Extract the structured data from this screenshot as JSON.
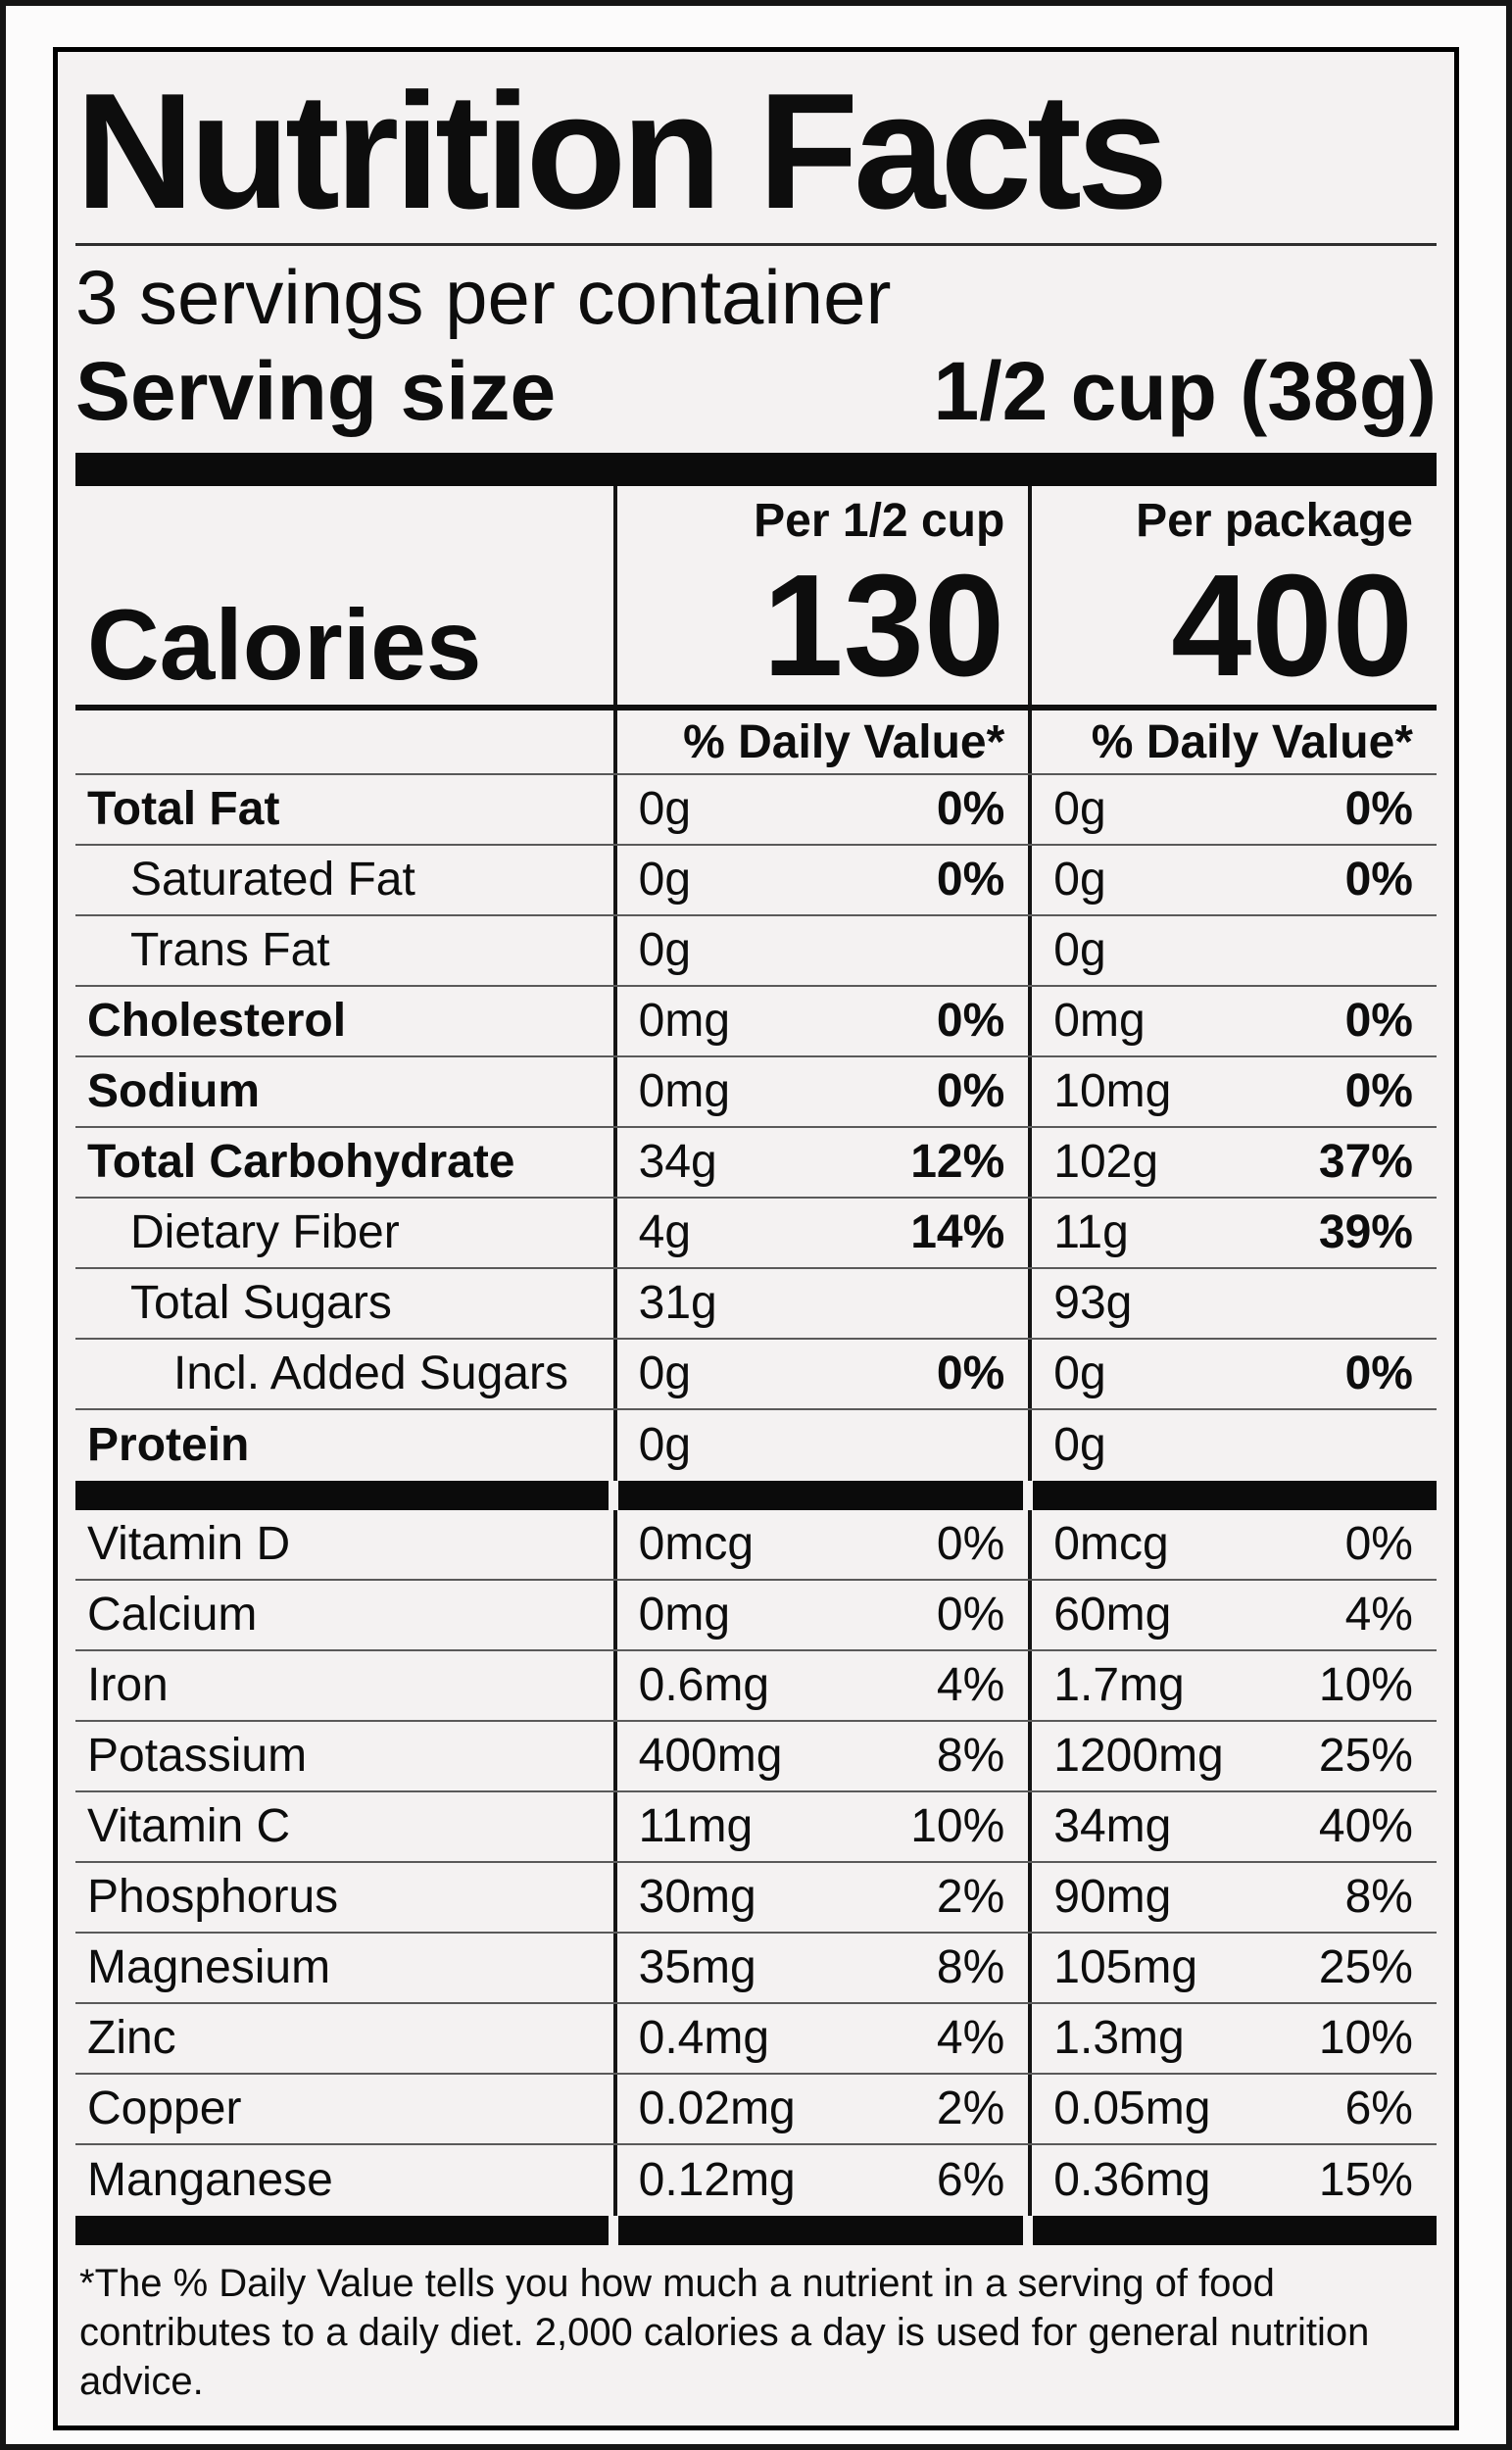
{
  "colors": {
    "label_background": "#f4f2f2",
    "ink": "#0d0d0d",
    "bar": "#0b0b0b"
  },
  "label": {
    "title": "Nutrition Facts",
    "servings_per_container": "3 servings per container",
    "serving_size": {
      "label": "Serving size",
      "value": "1/2 cup (38g)"
    },
    "columns": {
      "per_serving": "Per 1/2 cup",
      "per_package": "Per package"
    },
    "calories": {
      "label": "Calories",
      "per_serving": "130",
      "per_package": "400"
    },
    "daily_value_header": "% Daily Value*",
    "nutrients": [
      {
        "name": "Total Fat",
        "c1": {
          "amount": "0g",
          "dv": "0%"
        },
        "c2": {
          "amount": "0g",
          "dv": "0%"
        }
      },
      {
        "name": "Saturated Fat",
        "c1": {
          "amount": "0g",
          "dv": "0%"
        },
        "c2": {
          "amount": "0g",
          "dv": "0%"
        }
      },
      {
        "name": "Trans Fat",
        "c1": {
          "amount": "0g",
          "dv": ""
        },
        "c2": {
          "amount": "0g",
          "dv": ""
        }
      },
      {
        "name": "Cholesterol",
        "c1": {
          "amount": "0mg",
          "dv": "0%"
        },
        "c2": {
          "amount": "0mg",
          "dv": "0%"
        }
      },
      {
        "name": "Sodium",
        "c1": {
          "amount": "0mg",
          "dv": "0%"
        },
        "c2": {
          "amount": "10mg",
          "dv": "0%"
        }
      },
      {
        "name": "Total Carbohydrate",
        "c1": {
          "amount": "34g",
          "dv": "12%"
        },
        "c2": {
          "amount": "102g",
          "dv": "37%"
        }
      },
      {
        "name": "Dietary Fiber",
        "c1": {
          "amount": "4g",
          "dv": "14%"
        },
        "c2": {
          "amount": "11g",
          "dv": "39%"
        }
      },
      {
        "name": "Total Sugars",
        "c1": {
          "amount": "31g",
          "dv": ""
        },
        "c2": {
          "amount": "93g",
          "dv": ""
        }
      },
      {
        "name": "Incl. Added Sugars",
        "c1": {
          "amount": "0g",
          "dv": "0%"
        },
        "c2": {
          "amount": "0g",
          "dv": "0%"
        }
      },
      {
        "name": "Protein",
        "c1": {
          "amount": "0g",
          "dv": ""
        },
        "c2": {
          "amount": "0g",
          "dv": ""
        }
      }
    ],
    "micronutrients": [
      {
        "name": "Vitamin D",
        "c1": {
          "amount": "0mcg",
          "dv": "0%"
        },
        "c2": {
          "amount": "0mcg",
          "dv": "0%"
        }
      },
      {
        "name": "Calcium",
        "c1": {
          "amount": "0mg",
          "dv": "0%"
        },
        "c2": {
          "amount": "60mg",
          "dv": "4%"
        }
      },
      {
        "name": "Iron",
        "c1": {
          "amount": "0.6mg",
          "dv": "4%"
        },
        "c2": {
          "amount": "1.7mg",
          "dv": "10%"
        }
      },
      {
        "name": "Potassium",
        "c1": {
          "amount": "400mg",
          "dv": "8%"
        },
        "c2": {
          "amount": "1200mg",
          "dv": "25%"
        }
      },
      {
        "name": "Vitamin C",
        "c1": {
          "amount": "11mg",
          "dv": "10%"
        },
        "c2": {
          "amount": "34mg",
          "dv": "40%"
        }
      },
      {
        "name": "Phosphorus",
        "c1": {
          "amount": "30mg",
          "dv": "2%"
        },
        "c2": {
          "amount": "90mg",
          "dv": "8%"
        }
      },
      {
        "name": "Magnesium",
        "c1": {
          "amount": "35mg",
          "dv": "8%"
        },
        "c2": {
          "amount": "105mg",
          "dv": "25%"
        }
      },
      {
        "name": "Zinc",
        "c1": {
          "amount": "0.4mg",
          "dv": "4%"
        },
        "c2": {
          "amount": "1.3mg",
          "dv": "10%"
        }
      },
      {
        "name": "Copper",
        "c1": {
          "amount": "0.02mg",
          "dv": "2%"
        },
        "c2": {
          "amount": "0.05mg",
          "dv": "6%"
        }
      },
      {
        "name": "Manganese",
        "c1": {
          "amount": "0.12mg",
          "dv": "6%"
        },
        "c2": {
          "amount": "0.36mg",
          "dv": "15%"
        }
      }
    ],
    "footnote": "*The % Daily Value tells you how much a nutrient in a serving of food contributes to a daily diet. 2,000 calories a day is used for general nutrition advice."
  }
}
